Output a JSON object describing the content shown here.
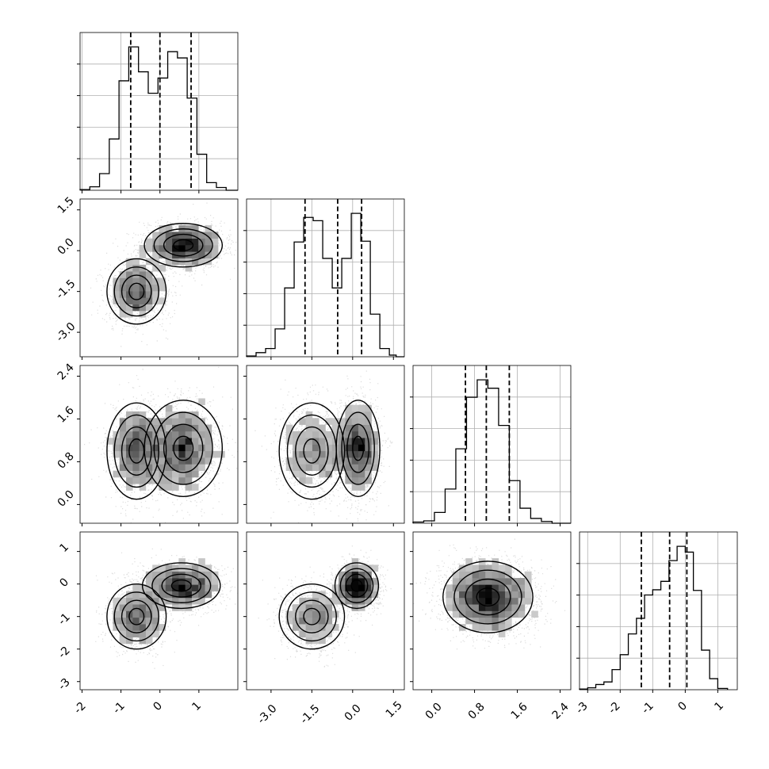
{
  "chart_data": {
    "type": "corner",
    "grid": true,
    "ticks": {
      "p0": [
        "-2",
        "-1",
        "0",
        "1"
      ],
      "p1": [
        "-3.0",
        "-1.5",
        "0.0",
        "1.5"
      ],
      "p2": [
        "0.0",
        "0.8",
        "1.6",
        "2.4"
      ],
      "p3": [
        "-3",
        "-2",
        "-1",
        "0",
        "1"
      ]
    },
    "params": [
      {
        "range": [
          -2.05,
          2.0
        ],
        "tick_values": [
          -2,
          -1,
          0,
          1
        ],
        "quantiles": [
          -0.75,
          0.0,
          0.8
        ],
        "hist_bins": [
          -2.05,
          -1.8,
          -1.55,
          -1.3,
          -1.05,
          -0.8,
          -0.55,
          -0.3,
          -0.05,
          0.2,
          0.45,
          0.7,
          0.95,
          1.2,
          1.45,
          1.7,
          2.0
        ],
        "hist_counts": [
          1,
          5,
          24,
          74,
          158,
          207,
          171,
          140,
          162,
          200,
          191,
          133,
          52,
          11,
          4,
          0
        ]
      },
      {
        "range": [
          -3.9,
          1.9
        ],
        "tick_values": [
          -3.0,
          -1.5,
          0.0,
          1.5
        ],
        "quantiles": [
          -1.75,
          -0.55,
          0.33
        ],
        "hist_bins": [
          -3.9,
          -3.55,
          -3.2,
          -2.85,
          -2.5,
          -2.15,
          -1.8,
          -1.45,
          -1.1,
          -0.75,
          -0.4,
          -0.05,
          0.3,
          0.65,
          1.0,
          1.35,
          1.6,
          1.9
        ],
        "hist_counts": [
          1,
          5,
          10,
          34,
          84,
          140,
          170,
          166,
          120,
          84,
          120,
          175,
          141,
          52,
          10,
          2,
          0
        ]
      },
      {
        "range": [
          -0.35,
          2.6
        ],
        "tick_values": [
          0.0,
          0.8,
          1.6,
          2.4
        ],
        "quantiles": [
          0.63,
          1.02,
          1.45
        ],
        "hist_bins": [
          -0.35,
          -0.15,
          0.05,
          0.25,
          0.45,
          0.65,
          0.85,
          1.05,
          1.25,
          1.45,
          1.65,
          1.85,
          2.05,
          2.25,
          2.45,
          2.6
        ],
        "hist_counts": [
          2,
          4,
          18,
          57,
          124,
          210,
          239,
          225,
          163,
          71,
          25,
          8,
          3,
          0,
          0
        ]
      },
      {
        "range": [
          -3.25,
          1.6
        ],
        "tick_values": [
          -3,
          -2,
          -1,
          0,
          1
        ],
        "quantiles": [
          -1.35,
          -0.48,
          0.05
        ],
        "hist_bins": [
          -3.25,
          -3.0,
          -2.75,
          -2.5,
          -2.25,
          -2.0,
          -1.75,
          -1.5,
          -1.25,
          -1.0,
          -0.75,
          -0.5,
          -0.25,
          0.0,
          0.25,
          0.5,
          0.75,
          1.0,
          1.3
        ],
        "hist_counts": [
          1,
          3,
          8,
          12,
          31,
          54,
          86,
          110,
          146,
          154,
          167,
          199,
          221,
          212,
          153,
          61,
          17,
          2
        ]
      }
    ],
    "samples_2d": [
      {
        "params": [
          0,
          1
        ],
        "components": [
          {
            "mean": [
              -0.6,
              -1.5
            ],
            "sd": [
              0.38,
              0.6
            ],
            "weight": 0.42
          },
          {
            "mean": [
              0.6,
              0.2
            ],
            "sd": [
              0.5,
              0.4
            ],
            "weight": 0.58
          }
        ]
      },
      {
        "params": [
          0,
          2
        ],
        "components": [
          {
            "mean": [
              -0.6,
              1.0
            ],
            "sd": [
              0.38,
              0.45
            ],
            "weight": 0.42
          },
          {
            "mean": [
              0.6,
              1.05
            ],
            "sd": [
              0.5,
              0.45
            ],
            "weight": 0.58
          }
        ]
      },
      {
        "params": [
          1,
          2
        ],
        "components": [
          {
            "mean": [
              -1.5,
              1.0
            ],
            "sd": [
              0.6,
              0.45
            ],
            "weight": 0.42
          },
          {
            "mean": [
              0.2,
              1.05
            ],
            "sd": [
              0.4,
              0.45
            ],
            "weight": 0.58
          }
        ]
      },
      {
        "params": [
          0,
          3
        ],
        "components": [
          {
            "mean": [
              -0.6,
              -1.0
            ],
            "sd": [
              0.38,
              0.5
            ],
            "weight": 0.42
          },
          {
            "mean": [
              0.55,
              -0.05
            ],
            "sd": [
              0.5,
              0.35
            ],
            "weight": 0.58
          }
        ]
      },
      {
        "params": [
          1,
          3
        ],
        "components": [
          {
            "mean": [
              -1.5,
              -1.0
            ],
            "sd": [
              0.6,
              0.5
            ],
            "weight": 0.42
          },
          {
            "mean": [
              0.15,
              -0.05
            ],
            "sd": [
              0.4,
              0.35
            ],
            "weight": 0.58
          }
        ]
      },
      {
        "params": [
          2,
          3
        ],
        "components": [
          {
            "mean": [
              1.05,
              -0.4
            ],
            "sd": [
              0.42,
              0.55
            ],
            "weight": 1.0
          }
        ]
      }
    ]
  }
}
